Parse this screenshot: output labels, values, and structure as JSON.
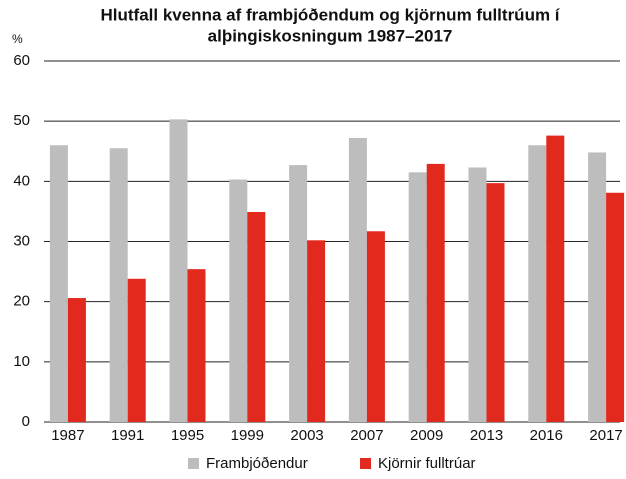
{
  "chart_data": {
    "type": "bar",
    "title": [
      "Hlutfall kvenna af frambjóðendum og kjörnum fulltrúum í",
      "alþingiskosningum 1987–2017"
    ],
    "y_label": "%",
    "categories": [
      "1987",
      "1991",
      "1995",
      "1999",
      "2003",
      "2007",
      "2009",
      "2013",
      "2016",
      "2017"
    ],
    "series": [
      {
        "name": "Frambjóðendur",
        "color": "#bdbdbd",
        "values": [
          46,
          45.5,
          50.3,
          40.3,
          42.7,
          47.2,
          41.5,
          42.3,
          46,
          44.8
        ]
      },
      {
        "name": "Kjörnir fulltrúar",
        "color": "#e1291d",
        "values": [
          20.6,
          23.8,
          25.4,
          34.9,
          30.2,
          31.7,
          42.9,
          39.7,
          47.6,
          38.1
        ]
      }
    ],
    "ylim": [
      0,
      60
    ],
    "yticks": [
      0,
      10,
      20,
      30,
      40,
      50,
      60
    ],
    "grid": true,
    "legend": "bottom"
  }
}
